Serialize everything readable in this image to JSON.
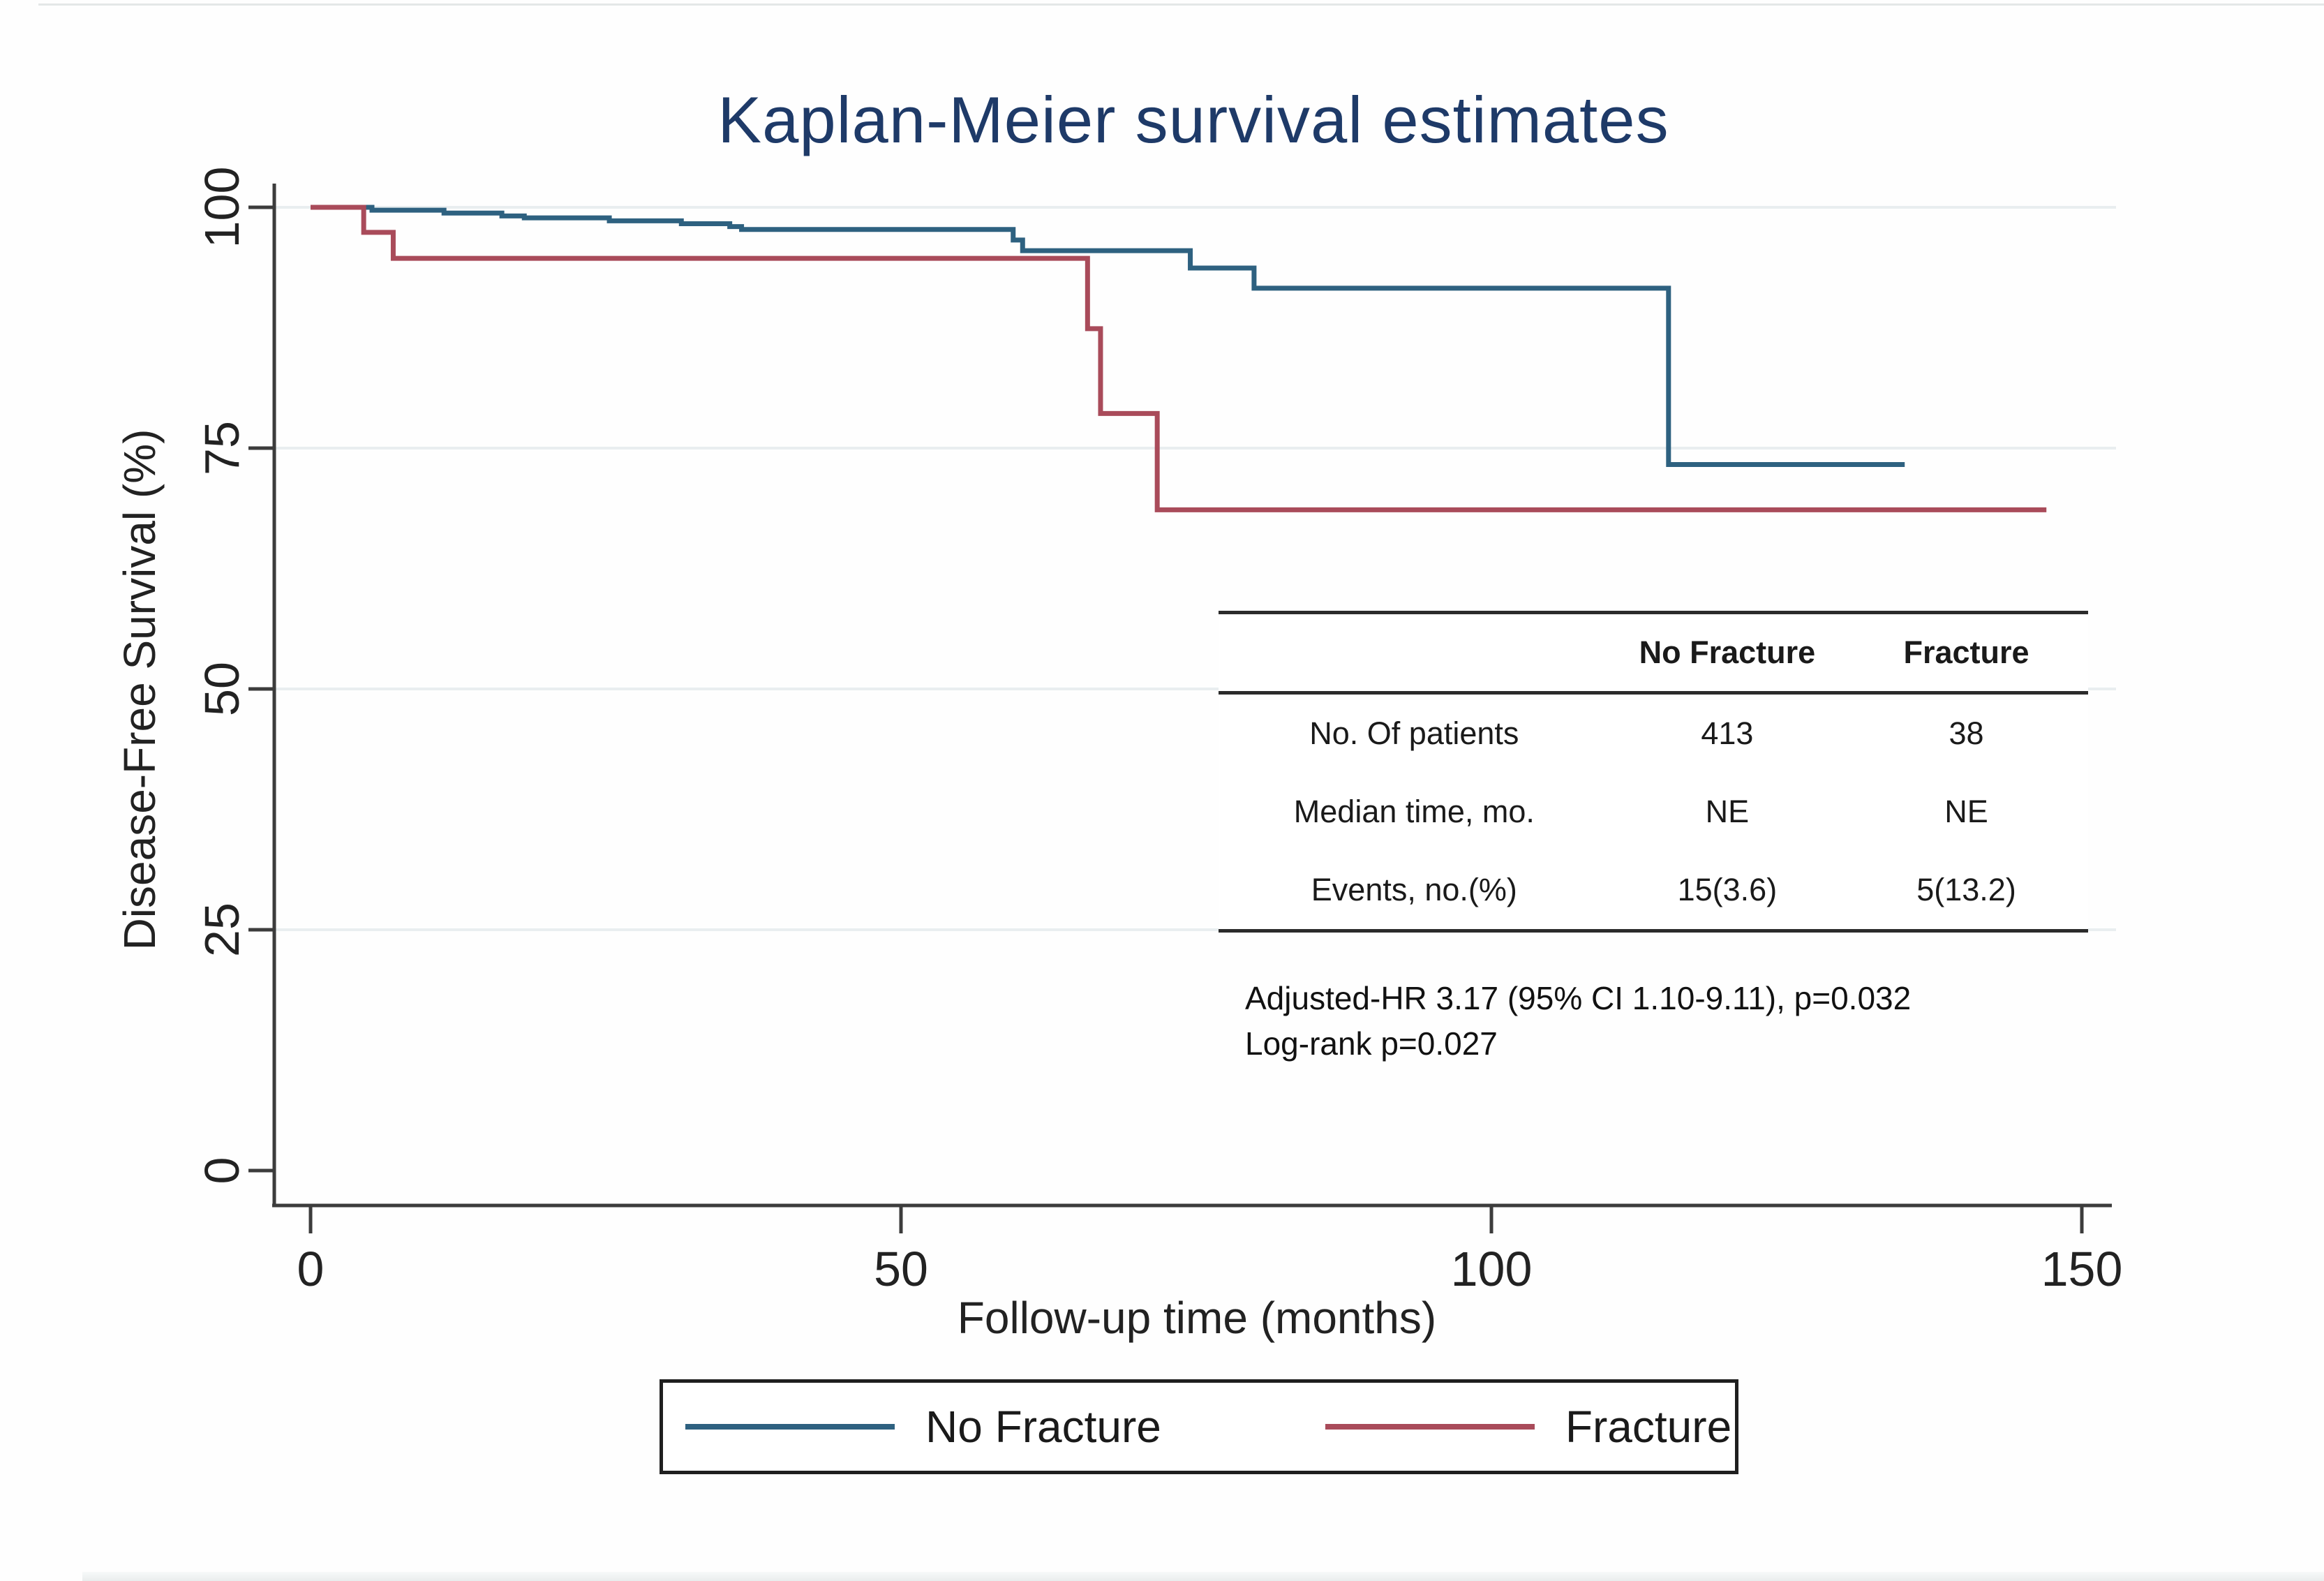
{
  "title": {
    "text": "Kaplan-Meier survival estimates",
    "color": "#1e3a68"
  },
  "axes": {
    "y": {
      "label": "Disease-Free Survival (%)",
      "ticks": [
        100,
        75,
        50,
        25,
        0
      ]
    },
    "x": {
      "label": "Follow-up time (months)",
      "ticks": [
        0,
        50,
        100,
        150
      ]
    }
  },
  "chart_data": {
    "type": "line",
    "subtype": "kaplan-meier-step",
    "title": "Kaplan-Meier survival estimates",
    "xlabel": "Follow-up time (months)",
    "ylabel": "Disease-Free Survival (%)",
    "xlim": [
      0,
      153
    ],
    "ylim": [
      0,
      100
    ],
    "grid": "horizontal-at-25-50-75-100",
    "legend_position": "bottom-box",
    "series": [
      {
        "name": "No Fracture",
        "color": "#2e6180",
        "start": [
          0,
          100
        ],
        "steps": [
          [
            5.2,
            99.7
          ],
          [
            11.3,
            99.4
          ],
          [
            16.2,
            99.1
          ],
          [
            18.1,
            98.9
          ],
          [
            25.3,
            98.6
          ],
          [
            31.4,
            98.3
          ],
          [
            35.5,
            98.0
          ],
          [
            36.5,
            97.7
          ],
          [
            59.5,
            96.6
          ],
          [
            60.3,
            95.5
          ],
          [
            74.5,
            93.7
          ],
          [
            79.9,
            91.6
          ],
          [
            115,
            73.3
          ]
        ],
        "end_x": 135,
        "final_value": 73.3
      },
      {
        "name": "Fracture",
        "color": "#a94b5a",
        "start": [
          0,
          100
        ],
        "steps": [
          [
            4.5,
            97.4
          ],
          [
            7.0,
            94.7
          ],
          [
            65.8,
            87.4
          ],
          [
            66.9,
            78.6
          ],
          [
            71.7,
            68.6
          ]
        ],
        "end_x": 147,
        "final_value": 68.6
      }
    ],
    "annotations": [
      "Adjusted-HR 3.17 (95% CI 1.10-9.11), p=0.032",
      "Log-rank p=0.027"
    ]
  },
  "inset_table": {
    "headers": [
      "",
      "No Fracture",
      "Fracture"
    ],
    "rows": [
      {
        "label": "No. Of patients",
        "no_fracture": "413",
        "fracture": "38"
      },
      {
        "label": "Median time, mo.",
        "no_fracture": "NE",
        "fracture": "NE"
      },
      {
        "label": "Events, no.(%)",
        "no_fracture": "15(3.6)",
        "fracture": "5(13.2)"
      }
    ]
  },
  "stats": {
    "line1": "Adjusted-HR 3.17 (95% CI 1.10-9.11), p=0.032",
    "line2": "Log-rank p=0.027"
  },
  "legend": {
    "items": [
      {
        "label": "No Fracture",
        "color": "#2e6180"
      },
      {
        "label": "Fracture",
        "color": "#a94b5a"
      }
    ]
  },
  "colors": {
    "grid": "#e9eef0",
    "axis": "#3c3c3c",
    "title": "#1e3a68"
  }
}
